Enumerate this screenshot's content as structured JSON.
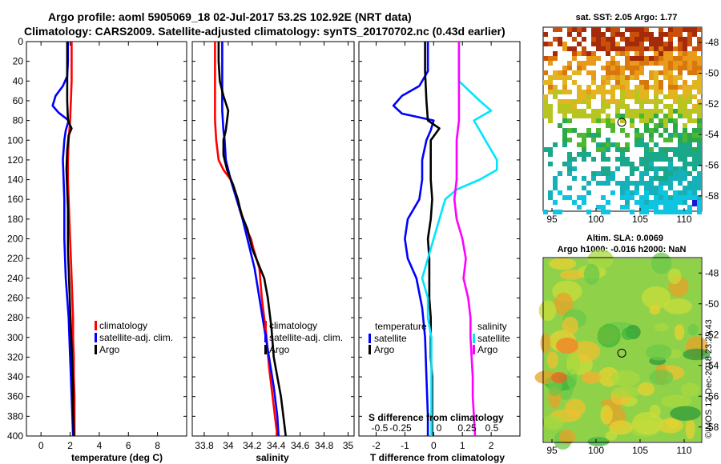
{
  "header": {
    "title_line1": "Argo profile: aoml 5905069_18 02-Jul-2017 53.2S 102.92E (NRT data)",
    "title_line2": "Climatology: CARS2009. Satellite-adjusted climatology: synTS_20170702.nc (0.43d earlier)"
  },
  "colors": {
    "climatology": "#ff0000",
    "satellite": "#0000ff",
    "argo": "#000000",
    "sat_salinity": "#00e5ff",
    "argo_salinity": "#ff00ff"
  },
  "chart_data": [
    {
      "type": "line",
      "id": "temperature",
      "xlabel": "temperature (deg C)",
      "xlim": [
        -1,
        10
      ],
      "xticks": [
        "0",
        "2",
        "4",
        "6",
        "8"
      ],
      "xtick_values": [
        0,
        2,
        4,
        6,
        8
      ],
      "ylim": [
        0,
        400
      ],
      "yticks": [
        "0",
        "20",
        "40",
        "60",
        "80",
        "100",
        "120",
        "140",
        "160",
        "180",
        "200",
        "220",
        "240",
        "260",
        "280",
        "300",
        "320",
        "340",
        "360",
        "380",
        "400"
      ],
      "legend": [
        "climatology",
        "satellite-adj. clim.",
        "Argo"
      ],
      "series": [
        {
          "name": "climatology",
          "color": "#ff0000",
          "points": [
            [
              2.1,
              0
            ],
            [
              2.1,
              20
            ],
            [
              2.1,
              40
            ],
            [
              2.05,
              60
            ],
            [
              2.0,
              80
            ],
            [
              1.9,
              100
            ],
            [
              1.85,
              120
            ],
            [
              1.85,
              140
            ],
            [
              1.9,
              160
            ],
            [
              1.95,
              180
            ],
            [
              2.0,
              200
            ],
            [
              2.05,
              220
            ],
            [
              2.1,
              240
            ],
            [
              2.15,
              260
            ],
            [
              2.2,
              280
            ],
            [
              2.2,
              300
            ],
            [
              2.25,
              320
            ],
            [
              2.25,
              340
            ],
            [
              2.3,
              360
            ],
            [
              2.3,
              380
            ],
            [
              2.3,
              400
            ]
          ]
        },
        {
          "name": "satellite-adj. clim.",
          "color": "#0000ff",
          "points": [
            [
              1.85,
              0
            ],
            [
              1.85,
              20
            ],
            [
              1.8,
              35
            ],
            [
              1.5,
              45
            ],
            [
              1.0,
              55
            ],
            [
              0.8,
              65
            ],
            [
              1.2,
              72
            ],
            [
              1.9,
              80
            ],
            [
              1.7,
              90
            ],
            [
              1.6,
              100
            ],
            [
              1.5,
              120
            ],
            [
              1.55,
              140
            ],
            [
              1.6,
              160
            ],
            [
              1.6,
              180
            ],
            [
              1.6,
              200
            ],
            [
              1.65,
              220
            ],
            [
              1.7,
              240
            ],
            [
              1.8,
              260
            ],
            [
              1.9,
              280
            ],
            [
              1.95,
              300
            ],
            [
              2.0,
              320
            ],
            [
              2.05,
              340
            ],
            [
              2.1,
              360
            ],
            [
              2.15,
              380
            ],
            [
              2.2,
              400
            ]
          ]
        },
        {
          "name": "Argo",
          "color": "#000000",
          "points": [
            [
              1.8,
              0
            ],
            [
              1.8,
              20
            ],
            [
              1.8,
              40
            ],
            [
              1.8,
              60
            ],
            [
              1.85,
              80
            ],
            [
              2.1,
              88
            ],
            [
              1.9,
              95
            ],
            [
              1.8,
              110
            ],
            [
              1.75,
              130
            ],
            [
              1.8,
              150
            ],
            [
              1.85,
              170
            ],
            [
              1.85,
              190
            ],
            [
              1.85,
              210
            ],
            [
              1.9,
              230
            ],
            [
              1.95,
              250
            ],
            [
              2.0,
              270
            ],
            [
              2.05,
              290
            ],
            [
              2.1,
              310
            ],
            [
              2.15,
              330
            ],
            [
              2.2,
              350
            ],
            [
              2.2,
              370
            ],
            [
              2.25,
              400
            ]
          ]
        }
      ]
    },
    {
      "type": "line",
      "id": "salinity",
      "xlabel": "salinity",
      "xlim": [
        33.7,
        35.05
      ],
      "xticks": [
        "33.8",
        "34",
        "34.2",
        "34.4",
        "34.6",
        "34.8",
        "35"
      ],
      "xtick_values": [
        33.8,
        34.0,
        34.2,
        34.4,
        34.6,
        34.8,
        35.0
      ],
      "ylim": [
        0,
        400
      ],
      "legend": [
        "climatology",
        "satellite-adj. clim.",
        "Argo"
      ],
      "series": [
        {
          "name": "climatology",
          "color": "#ff0000",
          "points": [
            [
              33.89,
              0
            ],
            [
              33.89,
              40
            ],
            [
              33.89,
              80
            ],
            [
              33.9,
              100
            ],
            [
              33.92,
              120
            ],
            [
              33.96,
              130
            ],
            [
              34.02,
              140
            ],
            [
              34.06,
              155
            ],
            [
              34.1,
              170
            ],
            [
              34.15,
              190
            ],
            [
              34.19,
              200
            ],
            [
              34.21,
              210
            ],
            [
              34.26,
              230
            ],
            [
              34.28,
              260
            ],
            [
              34.3,
              280
            ],
            [
              34.32,
              300
            ],
            [
              34.34,
              330
            ],
            [
              34.37,
              360
            ],
            [
              34.39,
              380
            ],
            [
              34.41,
              400
            ]
          ]
        },
        {
          "name": "satellite-adj. clim.",
          "color": "#0000ff",
          "points": [
            [
              33.95,
              0
            ],
            [
              33.95,
              40
            ],
            [
              33.95,
              70
            ],
            [
              33.96,
              90
            ],
            [
              33.97,
              100
            ],
            [
              33.98,
              120
            ],
            [
              34.02,
              140
            ],
            [
              34.07,
              160
            ],
            [
              34.12,
              180
            ],
            [
              34.15,
              195
            ],
            [
              34.18,
              210
            ],
            [
              34.22,
              230
            ],
            [
              34.26,
              260
            ],
            [
              34.3,
              290
            ],
            [
              34.34,
              320
            ],
            [
              34.38,
              350
            ],
            [
              34.41,
              380
            ],
            [
              34.42,
              400
            ]
          ]
        },
        {
          "name": "Argo",
          "color": "#000000",
          "points": [
            [
              33.92,
              0
            ],
            [
              33.92,
              20
            ],
            [
              33.93,
              40
            ],
            [
              33.96,
              55
            ],
            [
              34.0,
              70
            ],
            [
              33.99,
              80
            ],
            [
              33.98,
              90
            ],
            [
              33.96,
              100
            ],
            [
              33.96,
              115
            ],
            [
              33.99,
              130
            ],
            [
              34.04,
              145
            ],
            [
              34.08,
              160
            ],
            [
              34.11,
              175
            ],
            [
              34.16,
              190
            ],
            [
              34.2,
              210
            ],
            [
              34.25,
              225
            ],
            [
              34.3,
              240
            ],
            [
              34.33,
              260
            ],
            [
              34.36,
              290
            ],
            [
              34.38,
              320
            ],
            [
              34.41,
              340
            ],
            [
              34.44,
              360
            ],
            [
              34.46,
              380
            ],
            [
              34.48,
              400
            ]
          ]
        }
      ]
    },
    {
      "type": "line",
      "id": "differences",
      "xlabel": "T difference from climatology",
      "xlabel_top": "S difference from climatology",
      "xlim": [
        -2.6,
        3.0
      ],
      "xticks": [
        "-2",
        "-1",
        "0",
        "1",
        "2"
      ],
      "xtick_values": [
        -2,
        -1,
        0,
        1,
        2
      ],
      "xticks_s": [
        "-0.5",
        "-0.25",
        "0",
        "0.25",
        "0.5"
      ],
      "ylim": [
        0,
        400
      ],
      "legend_temperature_title": "temperature",
      "legend_salinity_title": "salinity",
      "legend_entries": [
        "satellite",
        "Argo",
        "satellite",
        "Argo"
      ],
      "series": [
        {
          "name": "temperature satellite",
          "color": "#0000ff",
          "points": [
            [
              -0.2,
              0
            ],
            [
              -0.2,
              30
            ],
            [
              -0.5,
              45
            ],
            [
              -1.1,
              55
            ],
            [
              -1.4,
              65
            ],
            [
              -1.1,
              73
            ],
            [
              0.0,
              80
            ],
            [
              -0.1,
              90
            ],
            [
              -0.25,
              100
            ],
            [
              -0.4,
              120
            ],
            [
              -0.4,
              140
            ],
            [
              -0.5,
              160
            ],
            [
              -0.9,
              180
            ],
            [
              -1.0,
              200
            ],
            [
              -0.9,
              220
            ],
            [
              -0.6,
              240
            ],
            [
              -0.4,
              270
            ],
            [
              -0.3,
              300
            ],
            [
              -0.25,
              340
            ],
            [
              -0.2,
              380
            ],
            [
              -0.2,
              400
            ]
          ]
        },
        {
          "name": "temperature Argo",
          "color": "#000000",
          "points": [
            [
              -0.3,
              0
            ],
            [
              -0.3,
              30
            ],
            [
              -0.25,
              60
            ],
            [
              -0.2,
              80
            ],
            [
              0.2,
              88
            ],
            [
              -0.1,
              100
            ],
            [
              -0.1,
              120
            ],
            [
              -0.1,
              140
            ],
            [
              -0.05,
              160
            ],
            [
              -0.1,
              180
            ],
            [
              -0.2,
              200
            ],
            [
              -0.15,
              220
            ],
            [
              -0.15,
              240
            ],
            [
              -0.15,
              260
            ],
            [
              -0.1,
              280
            ],
            [
              -0.1,
              300
            ],
            [
              -0.1,
              320
            ],
            [
              -0.05,
              340
            ],
            [
              -0.05,
              360
            ],
            [
              -0.05,
              400
            ]
          ]
        },
        {
          "name": "salinity satellite",
          "color": "#00e5ff",
          "points": [
            [
              0.22,
              0
            ],
            [
              0.22,
              40
            ],
            [
              0.4,
              60
            ],
            [
              0.5,
              70
            ],
            [
              0.35,
              80
            ],
            [
              0.4,
              90
            ],
            [
              0.45,
              100
            ],
            [
              0.55,
              120
            ],
            [
              0.55,
              130
            ],
            [
              0.4,
              140
            ],
            [
              0.2,
              150
            ],
            [
              0.1,
              160
            ],
            [
              0.05,
              180
            ],
            [
              0.0,
              200
            ],
            [
              -0.05,
              220
            ],
            [
              -0.1,
              240
            ],
            [
              -0.05,
              260
            ],
            [
              -0.05,
              280
            ],
            [
              -0.02,
              300
            ],
            [
              -0.02,
              340
            ],
            [
              -0.02,
              400
            ]
          ]
        },
        {
          "name": "salinity Argo",
          "color": "#ff00ff",
          "points": [
            [
              0.22,
              0
            ],
            [
              0.22,
              40
            ],
            [
              0.22,
              80
            ],
            [
              0.2,
              100
            ],
            [
              0.2,
              120
            ],
            [
              0.2,
              140
            ],
            [
              0.18,
              160
            ],
            [
              0.2,
              180
            ],
            [
              0.25,
              200
            ],
            [
              0.28,
              220
            ],
            [
              0.26,
              240
            ],
            [
              0.3,
              260
            ],
            [
              0.32,
              280
            ],
            [
              0.32,
              300
            ],
            [
              0.33,
              320
            ],
            [
              0.34,
              340
            ],
            [
              0.34,
              360
            ],
            [
              0.35,
              380
            ],
            [
              0.36,
              400
            ]
          ]
        }
      ]
    }
  ],
  "maps": {
    "sst": {
      "title": "sat. SST: 2.05 Argo: 1.77",
      "xticks": [
        "95",
        "100",
        "105",
        "110"
      ],
      "xtick_values": [
        95,
        100,
        105,
        110
      ],
      "yticks": [
        "-48",
        "-50",
        "-52",
        "-54",
        "-56",
        "-58"
      ],
      "ytick_values": [
        -48,
        -50,
        -52,
        -54,
        -56,
        -58
      ],
      "lon_range": [
        94,
        112
      ],
      "lat_range": [
        -59,
        -47
      ],
      "argo_lon": 102.92,
      "argo_lat": -53.2
    },
    "sla": {
      "title_line1": "Altim. SLA: 0.0069",
      "title_line2": "Argo h1000: -0.016 h2000: NaN",
      "xticks": [
        "95",
        "100",
        "105",
        "110"
      ],
      "xtick_values": [
        95,
        100,
        105,
        110
      ],
      "yticks": [
        "-48",
        "-50",
        "-52",
        "-54",
        "-56",
        "-58"
      ],
      "ytick_values": [
        -48,
        -50,
        -52,
        -54,
        -56,
        -58
      ],
      "lon_range": [
        94,
        112
      ],
      "lat_range": [
        -59,
        -47
      ],
      "argo_lon": 102.92,
      "argo_lat": -53.2
    }
  },
  "credit": "©IMOS 12-Dec-2018 23:29:43"
}
